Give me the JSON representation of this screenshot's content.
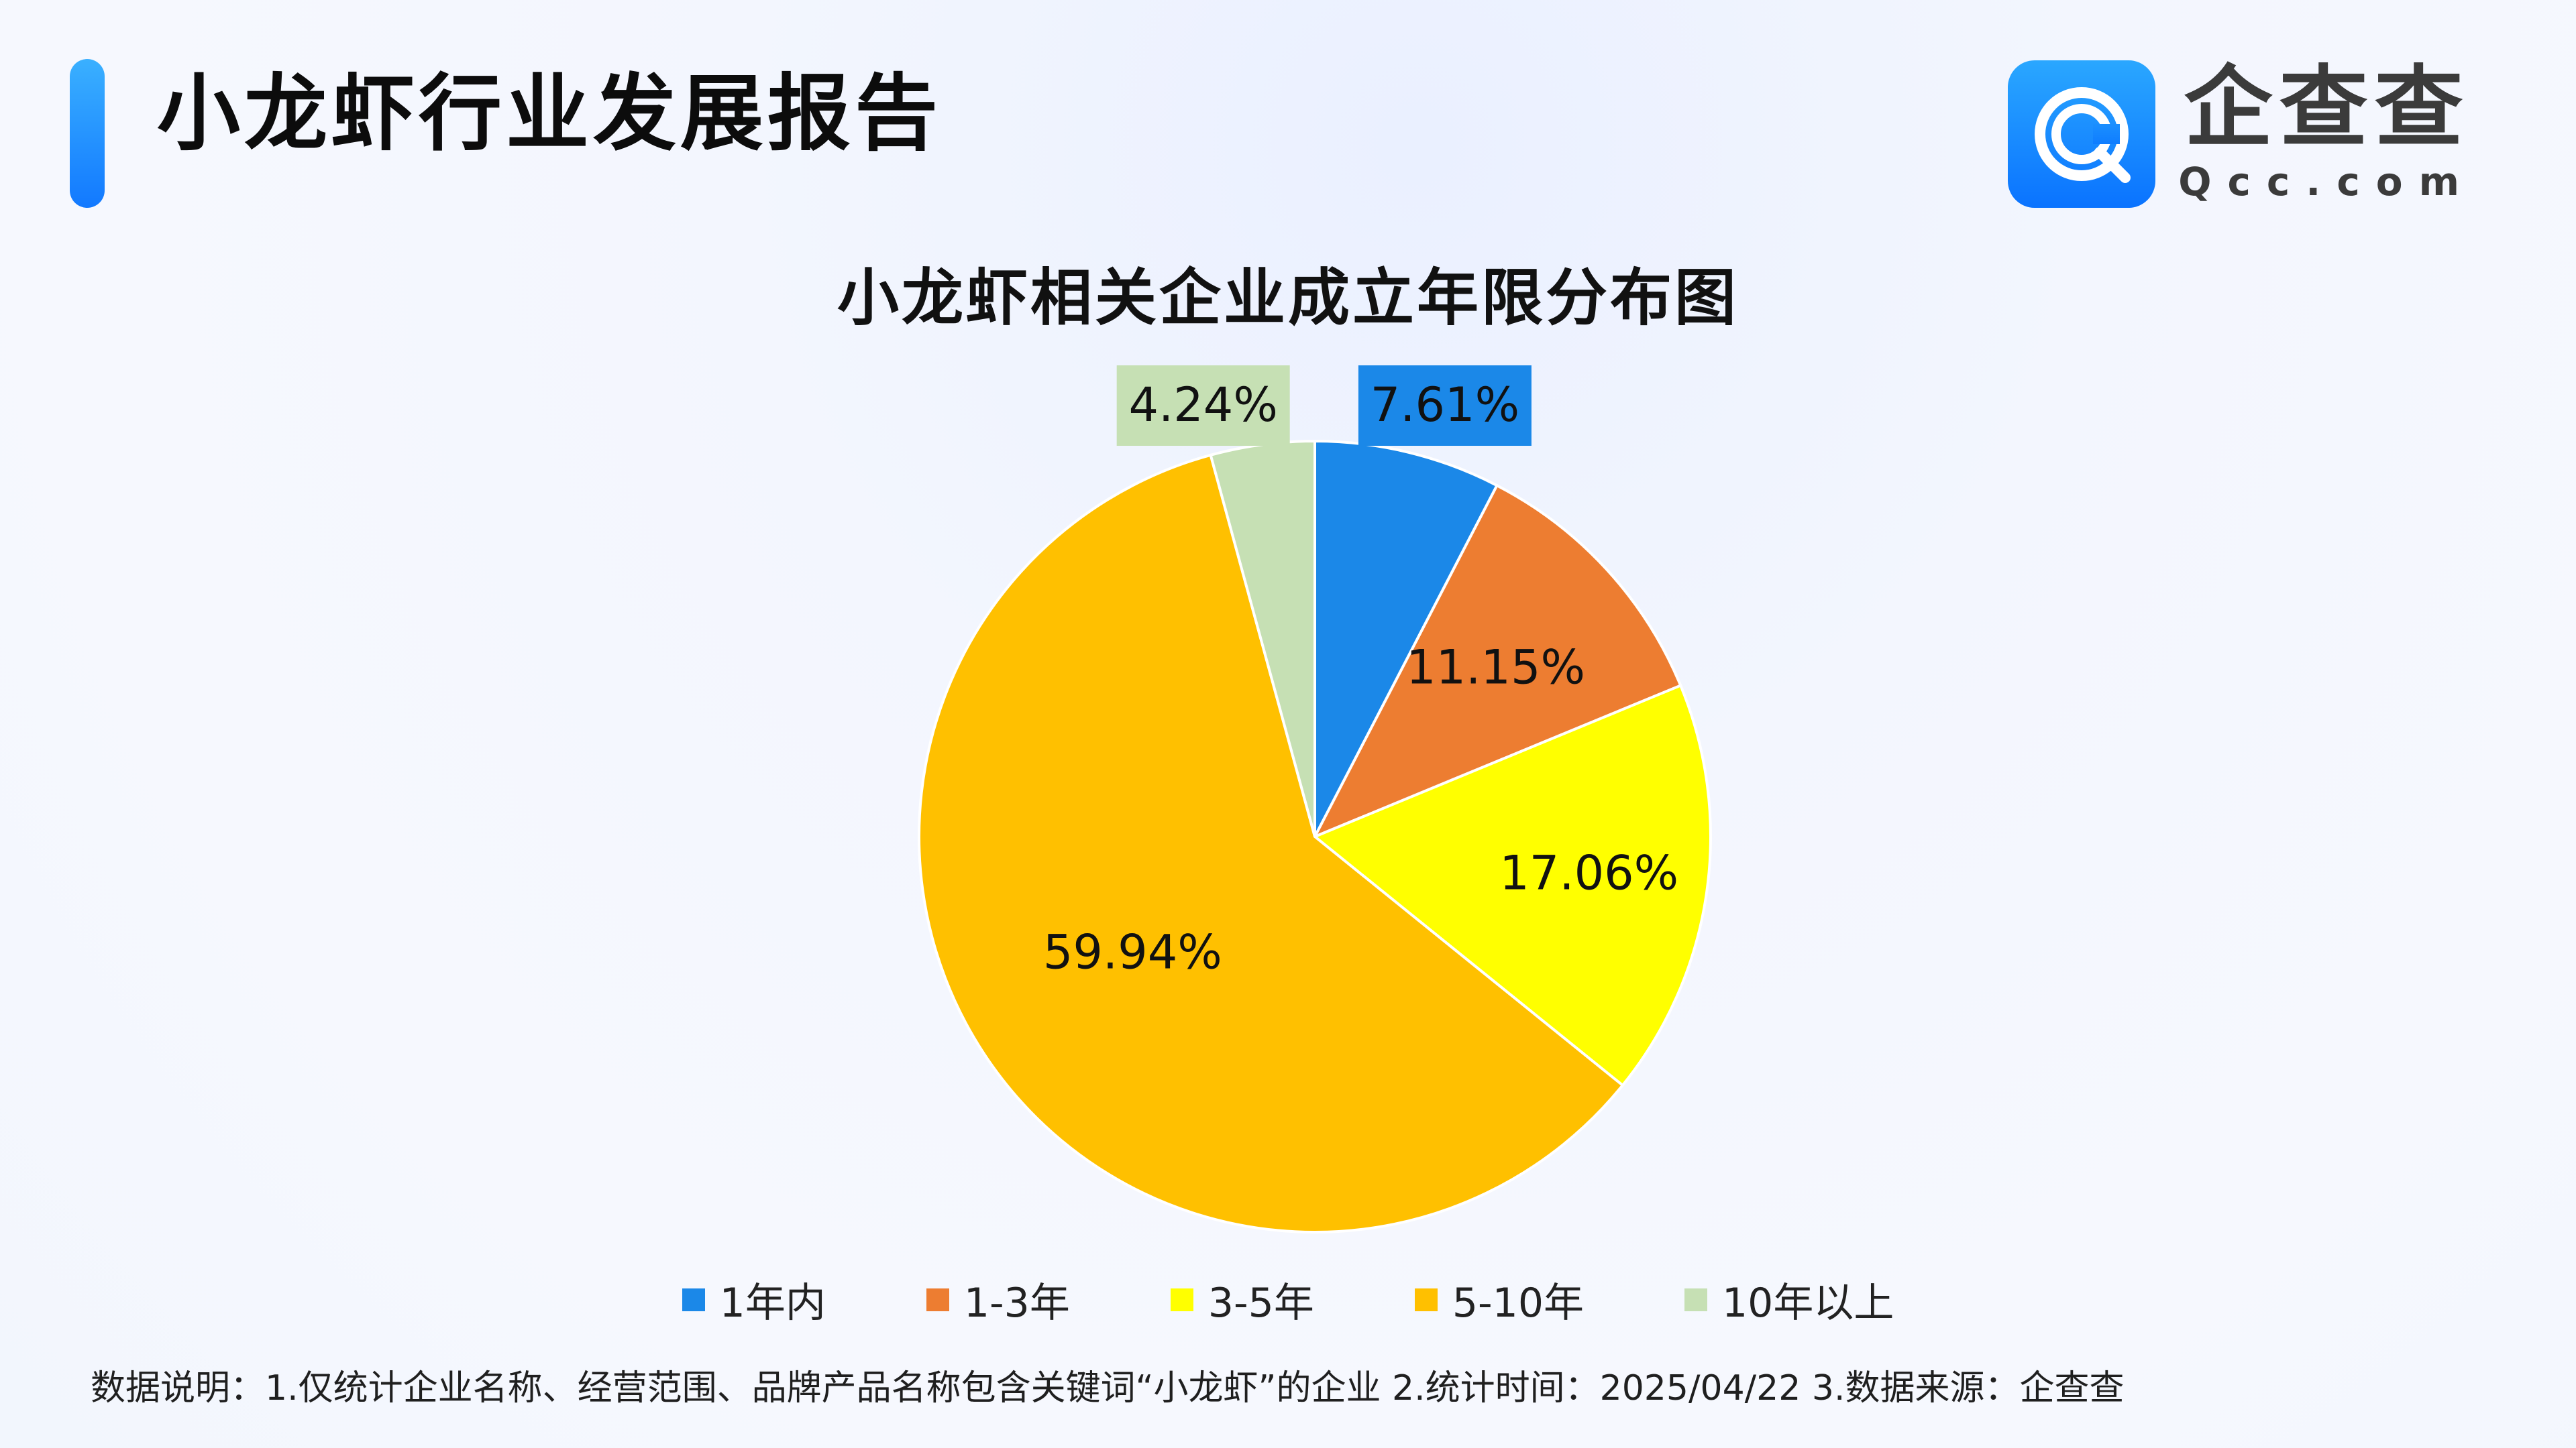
{
  "header": {
    "title": "小龙虾行业发展报告",
    "brand_name": "企查查",
    "brand_domain": "Qcc.com"
  },
  "chart_data": {
    "type": "pie",
    "title": "小龙虾相关企业成立年限分布图",
    "categories": [
      "1年内",
      "1-3年",
      "3-5年",
      "5-10年",
      "10年以上"
    ],
    "values": [
      7.61,
      11.15,
      17.06,
      59.94,
      4.24
    ],
    "labels": [
      "7.61%",
      "11.15%",
      "17.06%",
      "59.94%",
      "4.24%"
    ],
    "colors": [
      "#1b88e8",
      "#ed7d31",
      "#ffff00",
      "#ffc000",
      "#c6e0b4"
    ],
    "legend_position": "bottom"
  },
  "footer": {
    "note": "数据说明：1.仅统计企业名称、经营范围、品牌产品名称包含关键词“小龙虾”的企业   2.统计时间：2025/04/22    3.数据来源：企查查"
  }
}
